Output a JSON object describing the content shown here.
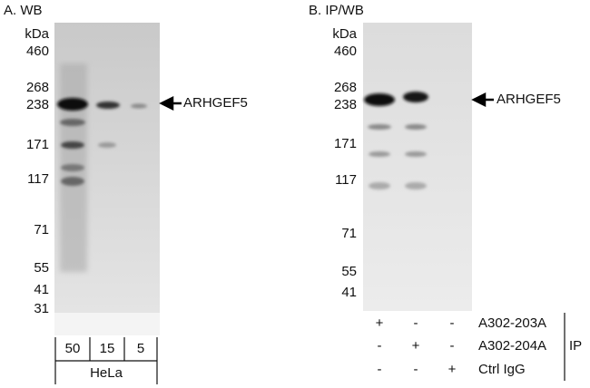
{
  "panels": [
    {
      "title": "A. WB",
      "unit": "kDa",
      "markers": [
        "460",
        "268",
        "238",
        "171",
        "117",
        "71",
        "55",
        "41",
        "31"
      ],
      "target": "ARHGEF5",
      "lanes": [
        "50",
        "15",
        "5"
      ],
      "sample": "HeLa"
    },
    {
      "title": "B. IP/WB",
      "unit": "kDa",
      "markers": [
        "460",
        "268",
        "238",
        "171",
        "117",
        "71",
        "55",
        "41"
      ],
      "target": "ARHGEF5",
      "conditions": [
        {
          "signs": [
            "+",
            "-",
            "-"
          ],
          "label": "A302-203A"
        },
        {
          "signs": [
            "-",
            "+",
            "-"
          ],
          "label": "A302-204A"
        },
        {
          "signs": [
            "-",
            "-",
            "+"
          ],
          "label": "Ctrl IgG"
        }
      ],
      "group": "IP"
    }
  ]
}
